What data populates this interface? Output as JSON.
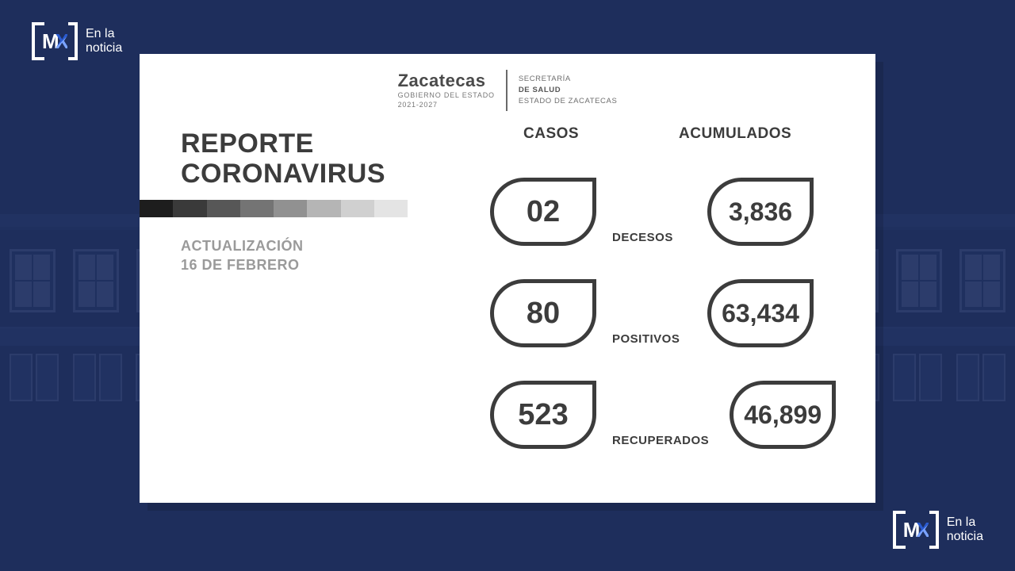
{
  "logo": {
    "line1": "En la",
    "line2": "noticia"
  },
  "header": {
    "state": "Zacatecas",
    "gov_line1": "GOBIERNO DEL ESTADO",
    "gov_line2": "2021-2027",
    "secr_line1": "SECRETARÍA",
    "secr_line2": "DE SALUD",
    "secr_line3": "ESTADO DE ZACATECAS"
  },
  "title_line1": "REPORTE",
  "title_line2": "CORONAVIRUS",
  "gradient_colors": [
    "#1d1d1d",
    "#3a3a3a",
    "#575757",
    "#747474",
    "#919191",
    "#b5b5b5",
    "#d0d0d0",
    "#e4e4e4"
  ],
  "update_label_line1": "ACTUALIZACIÓN",
  "update_label_line2": "16 DE FEBRERO",
  "columns": {
    "casos": "CASOS",
    "acumulados": "ACUMULADOS"
  },
  "rows": [
    {
      "label": "DECESOS",
      "casos": "02",
      "acumulados": "3,836"
    },
    {
      "label": "POSITIVOS",
      "casos": "80",
      "acumulados": "63,434"
    },
    {
      "label": "RECUPERADOS",
      "casos": "523",
      "acumulados": "46,899"
    }
  ],
  "style": {
    "background": "#1e2e5c",
    "card_bg": "#ffffff",
    "text_dark": "#3c3c3c",
    "text_muted": "#9a9a9a",
    "drop_border": "#3c3c3c"
  }
}
